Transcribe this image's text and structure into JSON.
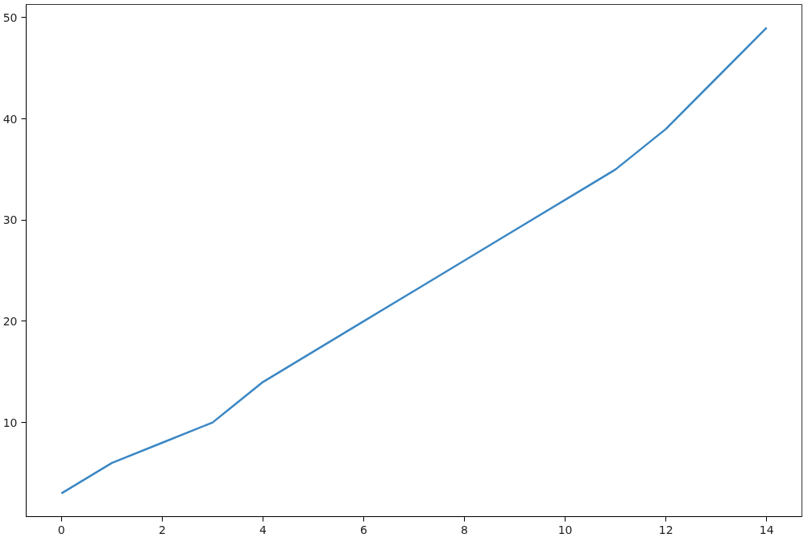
{
  "chart_data": {
    "type": "line",
    "x": [
      0,
      1,
      2,
      3,
      4,
      5,
      6,
      7,
      8,
      9,
      10,
      11,
      12,
      13,
      14
    ],
    "series": [
      {
        "color": "#3b87c4",
        "values": [
          3,
          6,
          8,
          10,
          14,
          17,
          20,
          23,
          26,
          29,
          32,
          35,
          39,
          44,
          49
        ]
      }
    ],
    "xlim": [
      -0.7,
      14.7
    ],
    "ylim": [
      0.7,
      51.3
    ],
    "xticks": [
      0,
      2,
      4,
      6,
      8,
      10,
      12,
      14
    ],
    "yticks": [
      10,
      20,
      30,
      40,
      50
    ],
    "grid": false
  }
}
